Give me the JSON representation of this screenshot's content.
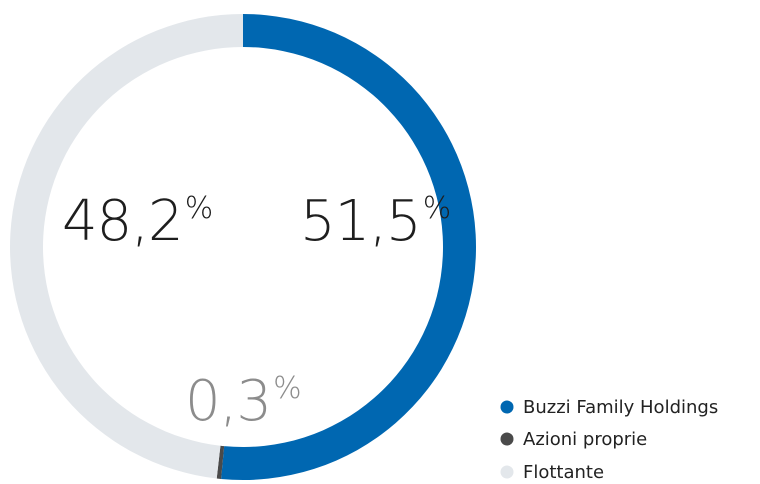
{
  "chart_data": {
    "type": "pie",
    "categories": [
      "Buzzi Family Holdings",
      "Azioni proprie",
      "Flottante"
    ],
    "values": [
      51.5,
      0.3,
      48.2
    ],
    "value_labels": [
      "51,5",
      "0,3",
      "48,2"
    ],
    "unit": "%",
    "colors": [
      "#0067b1",
      "#4a4a4a",
      "#e3e7eb"
    ],
    "label_colors": [
      "#1e1e1e",
      "#8c8c8c",
      "#1e1e1e"
    ]
  }
}
